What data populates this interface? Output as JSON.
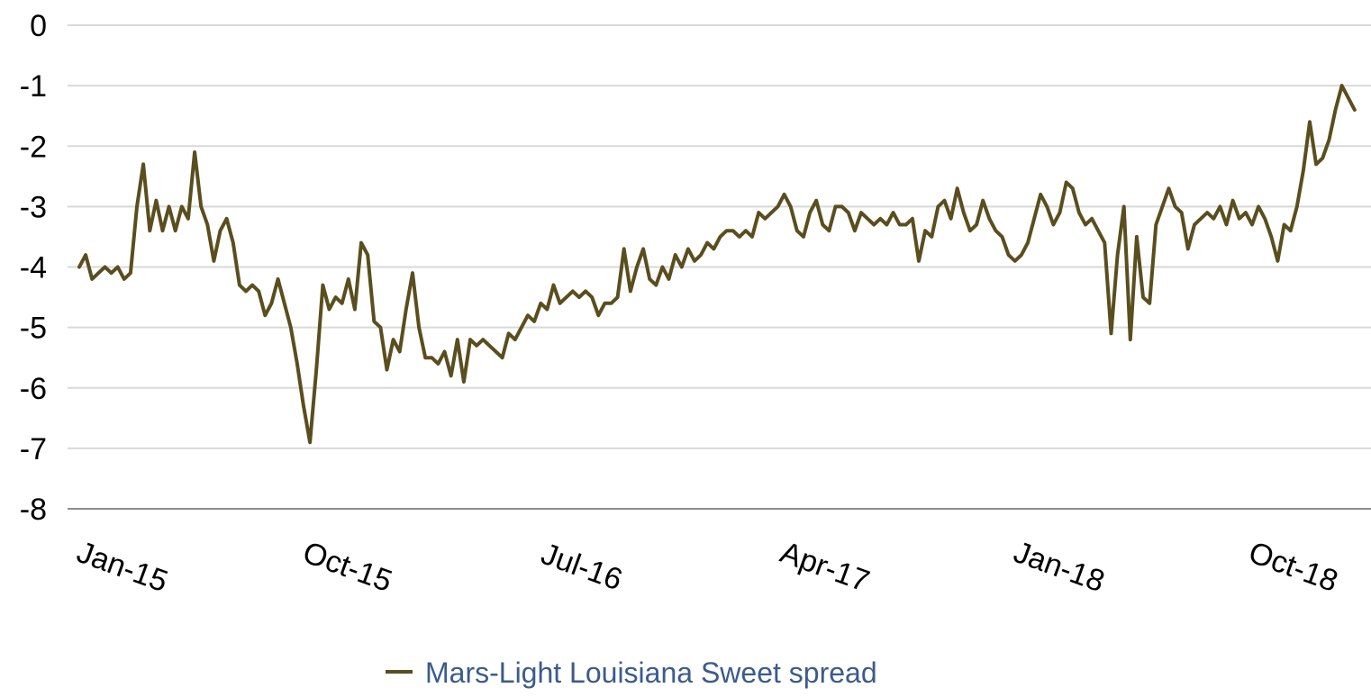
{
  "chart_data": {
    "type": "line",
    "title": "",
    "xlabel": "",
    "ylabel": "",
    "ylim": [
      -8,
      0
    ],
    "y_ticks": [
      "0",
      "-1",
      "-2",
      "-3",
      "-4",
      "-5",
      "-6",
      "-7",
      "-8"
    ],
    "x_ticks": [
      "Jan-15",
      "Oct-15",
      "Jul-16",
      "Apr-17",
      "Jan-18",
      "Oct-18"
    ],
    "grid": true,
    "legend_position": "bottom",
    "series": [
      {
        "name": "Mars-Light Louisiana Sweet spread",
        "color": "#5a4e1e",
        "points": [
          [
            "2015-01-01",
            -4.0
          ],
          [
            "2015-01-08",
            -3.8
          ],
          [
            "2015-01-15",
            -4.2
          ],
          [
            "2015-01-22",
            -4.1
          ],
          [
            "2015-01-29",
            -4.0
          ],
          [
            "2015-02-05",
            -4.1
          ],
          [
            "2015-02-12",
            -4.0
          ],
          [
            "2015-02-19",
            -4.2
          ],
          [
            "2015-02-26",
            -4.1
          ],
          [
            "2015-03-05",
            -3.0
          ],
          [
            "2015-03-12",
            -2.3
          ],
          [
            "2015-03-19",
            -3.4
          ],
          [
            "2015-03-26",
            -2.9
          ],
          [
            "2015-04-02",
            -3.4
          ],
          [
            "2015-04-09",
            -3.0
          ],
          [
            "2015-04-16",
            -3.4
          ],
          [
            "2015-04-23",
            -3.0
          ],
          [
            "2015-04-30",
            -3.2
          ],
          [
            "2015-05-07",
            -2.1
          ],
          [
            "2015-05-14",
            -3.0
          ],
          [
            "2015-05-21",
            -3.3
          ],
          [
            "2015-05-28",
            -3.9
          ],
          [
            "2015-06-04",
            -3.4
          ],
          [
            "2015-06-11",
            -3.2
          ],
          [
            "2015-06-18",
            -3.6
          ],
          [
            "2015-06-25",
            -4.3
          ],
          [
            "2015-07-02",
            -4.4
          ],
          [
            "2015-07-09",
            -4.3
          ],
          [
            "2015-07-16",
            -4.4
          ],
          [
            "2015-07-23",
            -4.8
          ],
          [
            "2015-07-30",
            -4.6
          ],
          [
            "2015-08-06",
            -4.2
          ],
          [
            "2015-08-13",
            -4.6
          ],
          [
            "2015-08-20",
            -5.0
          ],
          [
            "2015-08-27",
            -5.6
          ],
          [
            "2015-09-03",
            -6.3
          ],
          [
            "2015-09-10",
            -6.9
          ],
          [
            "2015-09-17",
            -5.7
          ],
          [
            "2015-09-24",
            -4.3
          ],
          [
            "2015-10-01",
            -4.7
          ],
          [
            "2015-10-08",
            -4.5
          ],
          [
            "2015-10-15",
            -4.6
          ],
          [
            "2015-10-22",
            -4.2
          ],
          [
            "2015-10-29",
            -4.7
          ],
          [
            "2015-11-05",
            -3.6
          ],
          [
            "2015-11-12",
            -3.8
          ],
          [
            "2015-11-19",
            -4.9
          ],
          [
            "2015-11-26",
            -5.0
          ],
          [
            "2015-12-03",
            -5.7
          ],
          [
            "2015-12-10",
            -5.2
          ],
          [
            "2015-12-17",
            -5.4
          ],
          [
            "2015-12-24",
            -4.7
          ],
          [
            "2015-12-31",
            -4.1
          ],
          [
            "2016-01-07",
            -5.0
          ],
          [
            "2016-01-14",
            -5.5
          ],
          [
            "2016-01-21",
            -5.5
          ],
          [
            "2016-01-28",
            -5.6
          ],
          [
            "2016-02-04",
            -5.4
          ],
          [
            "2016-02-11",
            -5.8
          ],
          [
            "2016-02-18",
            -5.2
          ],
          [
            "2016-02-25",
            -5.9
          ],
          [
            "2016-03-03",
            -5.2
          ],
          [
            "2016-03-10",
            -5.3
          ],
          [
            "2016-03-17",
            -5.2
          ],
          [
            "2016-03-24",
            -5.3
          ],
          [
            "2016-03-31",
            -5.4
          ],
          [
            "2016-04-07",
            -5.5
          ],
          [
            "2016-04-14",
            -5.1
          ],
          [
            "2016-04-21",
            -5.2
          ],
          [
            "2016-04-28",
            -5.0
          ],
          [
            "2016-05-05",
            -4.8
          ],
          [
            "2016-05-12",
            -4.9
          ],
          [
            "2016-05-19",
            -4.6
          ],
          [
            "2016-05-26",
            -4.7
          ],
          [
            "2016-06-02",
            -4.3
          ],
          [
            "2016-06-09",
            -4.6
          ],
          [
            "2016-06-16",
            -4.5
          ],
          [
            "2016-06-23",
            -4.4
          ],
          [
            "2016-06-30",
            -4.5
          ],
          [
            "2016-07-07",
            -4.4
          ],
          [
            "2016-07-14",
            -4.5
          ],
          [
            "2016-07-21",
            -4.8
          ],
          [
            "2016-07-28",
            -4.6
          ],
          [
            "2016-08-04",
            -4.6
          ],
          [
            "2016-08-11",
            -4.5
          ],
          [
            "2016-08-18",
            -3.7
          ],
          [
            "2016-08-25",
            -4.4
          ],
          [
            "2016-09-01",
            -4.0
          ],
          [
            "2016-09-08",
            -3.7
          ],
          [
            "2016-09-15",
            -4.2
          ],
          [
            "2016-09-22",
            -4.3
          ],
          [
            "2016-09-29",
            -4.0
          ],
          [
            "2016-10-06",
            -4.2
          ],
          [
            "2016-10-13",
            -3.8
          ],
          [
            "2016-10-20",
            -4.0
          ],
          [
            "2016-10-27",
            -3.7
          ],
          [
            "2016-11-03",
            -3.9
          ],
          [
            "2016-11-10",
            -3.8
          ],
          [
            "2016-11-17",
            -3.6
          ],
          [
            "2016-11-24",
            -3.7
          ],
          [
            "2016-12-01",
            -3.5
          ],
          [
            "2016-12-08",
            -3.4
          ],
          [
            "2016-12-15",
            -3.4
          ],
          [
            "2016-12-22",
            -3.5
          ],
          [
            "2016-12-29",
            -3.4
          ],
          [
            "2017-01-05",
            -3.5
          ],
          [
            "2017-01-12",
            -3.1
          ],
          [
            "2017-01-19",
            -3.2
          ],
          [
            "2017-01-26",
            -3.1
          ],
          [
            "2017-02-02",
            -3.0
          ],
          [
            "2017-02-09",
            -2.8
          ],
          [
            "2017-02-16",
            -3.0
          ],
          [
            "2017-02-23",
            -3.4
          ],
          [
            "2017-03-02",
            -3.5
          ],
          [
            "2017-03-09",
            -3.1
          ],
          [
            "2017-03-16",
            -2.9
          ],
          [
            "2017-03-23",
            -3.3
          ],
          [
            "2017-03-30",
            -3.4
          ],
          [
            "2017-04-06",
            -3.0
          ],
          [
            "2017-04-13",
            -3.0
          ],
          [
            "2017-04-20",
            -3.1
          ],
          [
            "2017-04-27",
            -3.4
          ],
          [
            "2017-05-04",
            -3.1
          ],
          [
            "2017-05-11",
            -3.2
          ],
          [
            "2017-05-18",
            -3.3
          ],
          [
            "2017-05-25",
            -3.2
          ],
          [
            "2017-06-01",
            -3.3
          ],
          [
            "2017-06-08",
            -3.1
          ],
          [
            "2017-06-15",
            -3.3
          ],
          [
            "2017-06-22",
            -3.3
          ],
          [
            "2017-06-29",
            -3.2
          ],
          [
            "2017-07-06",
            -3.9
          ],
          [
            "2017-07-13",
            -3.4
          ],
          [
            "2017-07-20",
            -3.5
          ],
          [
            "2017-07-27",
            -3.0
          ],
          [
            "2017-08-03",
            -2.9
          ],
          [
            "2017-08-10",
            -3.2
          ],
          [
            "2017-08-17",
            -2.7
          ],
          [
            "2017-08-24",
            -3.1
          ],
          [
            "2017-08-31",
            -3.4
          ],
          [
            "2017-09-07",
            -3.3
          ],
          [
            "2017-09-14",
            -2.9
          ],
          [
            "2017-09-21",
            -3.2
          ],
          [
            "2017-09-28",
            -3.4
          ],
          [
            "2017-10-05",
            -3.5
          ],
          [
            "2017-10-12",
            -3.8
          ],
          [
            "2017-10-19",
            -3.9
          ],
          [
            "2017-10-26",
            -3.8
          ],
          [
            "2017-11-02",
            -3.6
          ],
          [
            "2017-11-09",
            -3.2
          ],
          [
            "2017-11-16",
            -2.8
          ],
          [
            "2017-11-23",
            -3.0
          ],
          [
            "2017-11-30",
            -3.3
          ],
          [
            "2017-12-07",
            -3.1
          ],
          [
            "2017-12-14",
            -2.6
          ],
          [
            "2017-12-21",
            -2.7
          ],
          [
            "2017-12-28",
            -3.1
          ],
          [
            "2018-01-04",
            -3.3
          ],
          [
            "2018-01-11",
            -3.2
          ],
          [
            "2018-01-18",
            -3.4
          ],
          [
            "2018-01-25",
            -3.6
          ],
          [
            "2018-02-01",
            -5.1
          ],
          [
            "2018-02-08",
            -3.8
          ],
          [
            "2018-02-15",
            -3.0
          ],
          [
            "2018-02-22",
            -5.2
          ],
          [
            "2018-03-01",
            -3.5
          ],
          [
            "2018-03-08",
            -4.5
          ],
          [
            "2018-03-15",
            -4.6
          ],
          [
            "2018-03-22",
            -3.3
          ],
          [
            "2018-03-29",
            -3.0
          ],
          [
            "2018-04-05",
            -2.7
          ],
          [
            "2018-04-12",
            -3.0
          ],
          [
            "2018-04-19",
            -3.1
          ],
          [
            "2018-04-26",
            -3.7
          ],
          [
            "2018-05-03",
            -3.3
          ],
          [
            "2018-05-10",
            -3.2
          ],
          [
            "2018-05-17",
            -3.1
          ],
          [
            "2018-05-24",
            -3.2
          ],
          [
            "2018-05-31",
            -3.0
          ],
          [
            "2018-06-07",
            -3.3
          ],
          [
            "2018-06-14",
            -2.9
          ],
          [
            "2018-06-21",
            -3.2
          ],
          [
            "2018-06-28",
            -3.1
          ],
          [
            "2018-07-05",
            -3.3
          ],
          [
            "2018-07-12",
            -3.0
          ],
          [
            "2018-07-19",
            -3.2
          ],
          [
            "2018-07-26",
            -3.5
          ],
          [
            "2018-08-02",
            -3.9
          ],
          [
            "2018-08-09",
            -3.3
          ],
          [
            "2018-08-16",
            -3.4
          ],
          [
            "2018-08-23",
            -3.0
          ],
          [
            "2018-08-30",
            -2.4
          ],
          [
            "2018-09-06",
            -1.6
          ],
          [
            "2018-09-13",
            -2.3
          ],
          [
            "2018-09-20",
            -2.2
          ],
          [
            "2018-09-27",
            -1.9
          ],
          [
            "2018-10-04",
            -1.4
          ],
          [
            "2018-10-11",
            -1.0
          ],
          [
            "2018-10-18",
            -1.2
          ],
          [
            "2018-10-25",
            -1.4
          ]
        ]
      }
    ]
  }
}
